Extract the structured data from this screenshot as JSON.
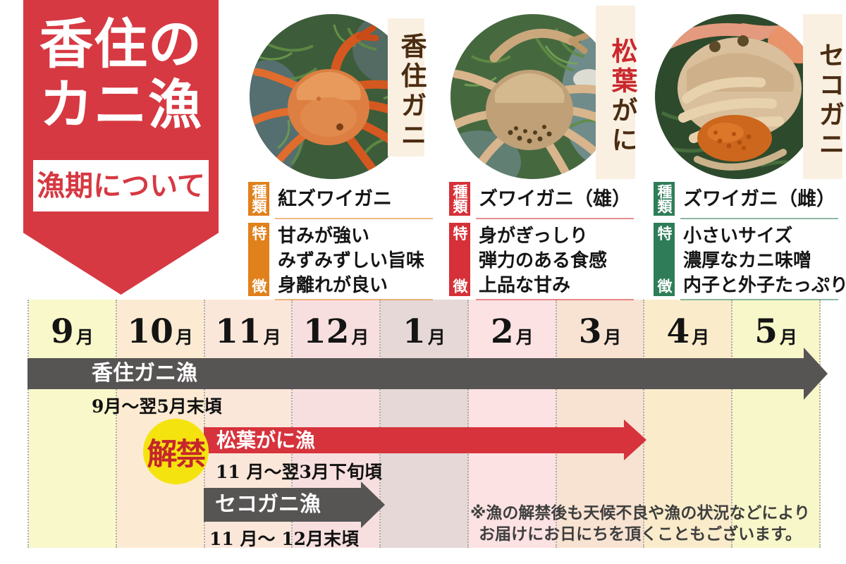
{
  "banner": {
    "title_line1": "香住の",
    "title_line2": "カニ漁",
    "subtitle": "漁期について",
    "bg_color": "#d63942",
    "text_color": "#ffffff"
  },
  "palette": {
    "plate_bg": "#faf0e1",
    "plate_text": "#4a2c12",
    "grid_line": "#ababab",
    "date_text": "#111111",
    "note_text": "#3f3f3f"
  },
  "crabs": [
    {
      "name": "香住ガニ",
      "accent_color": "#e0811c",
      "type_label": "種類",
      "type_value": "紅ズワイガニ",
      "feature_label": "特徴",
      "features": [
        "甘みが強い",
        "みずみずしい旨味",
        "身離れが良い"
      ]
    },
    {
      "name_accent": "松葉",
      "name_rest": "がに",
      "name_accent_color": "#c9282d",
      "accent_color": "#d63038",
      "type_label": "種類",
      "type_value": "ズワイガニ（雄）",
      "feature_label": "特徴",
      "features": [
        "身がぎっしり",
        "弾力のある食感",
        "上品な甘み"
      ]
    },
    {
      "name": "セコガニ",
      "accent_color": "#2e7d58",
      "type_label": "種類",
      "type_value": "ズワイガニ（雌）",
      "feature_label": "特徴",
      "features": [
        "小さいサイズ",
        "濃厚なカニ味噌",
        "内子と外子たっぷり"
      ]
    }
  ],
  "timeline": {
    "month_suffix": "月",
    "months": [
      {
        "num": "9",
        "color": "#f8f8cb"
      },
      {
        "num": "10",
        "color": "#fcebd2"
      },
      {
        "num": "11",
        "color": "#fbe7da"
      },
      {
        "num": "12",
        "color": "#f8dfdf"
      },
      {
        "num": "1",
        "color": "#e5d8d6"
      },
      {
        "num": "2",
        "color": "#fce2e2"
      },
      {
        "num": "3",
        "color": "#f8e3d2"
      },
      {
        "num": "4",
        "color": "#faeccb"
      },
      {
        "num": "5",
        "color": "#f8f7c9"
      }
    ],
    "bars": [
      {
        "label": "香住ガニ漁",
        "period": "9月〜翌5月末頃",
        "color": "#575454",
        "start_month": "9月",
        "end_month": "5月"
      },
      {
        "label": "松葉がに漁",
        "period": "11 月〜翌3月下旬頃",
        "color": "#d6333c",
        "start_month": "11月",
        "end_month": "3月"
      },
      {
        "label": "セコガニ漁",
        "period": "11 月〜 12月末頃",
        "color": "#575454",
        "start_month": "11月",
        "end_month": "12月"
      }
    ],
    "badge": {
      "text": "解禁",
      "bg_color": "#f5e310",
      "text_color": "#c4262c"
    },
    "note_line1": "※漁の解禁後も天候不良や漁の状況などにより",
    "note_line2": "お届けにお日にちを頂くこともございます。"
  }
}
